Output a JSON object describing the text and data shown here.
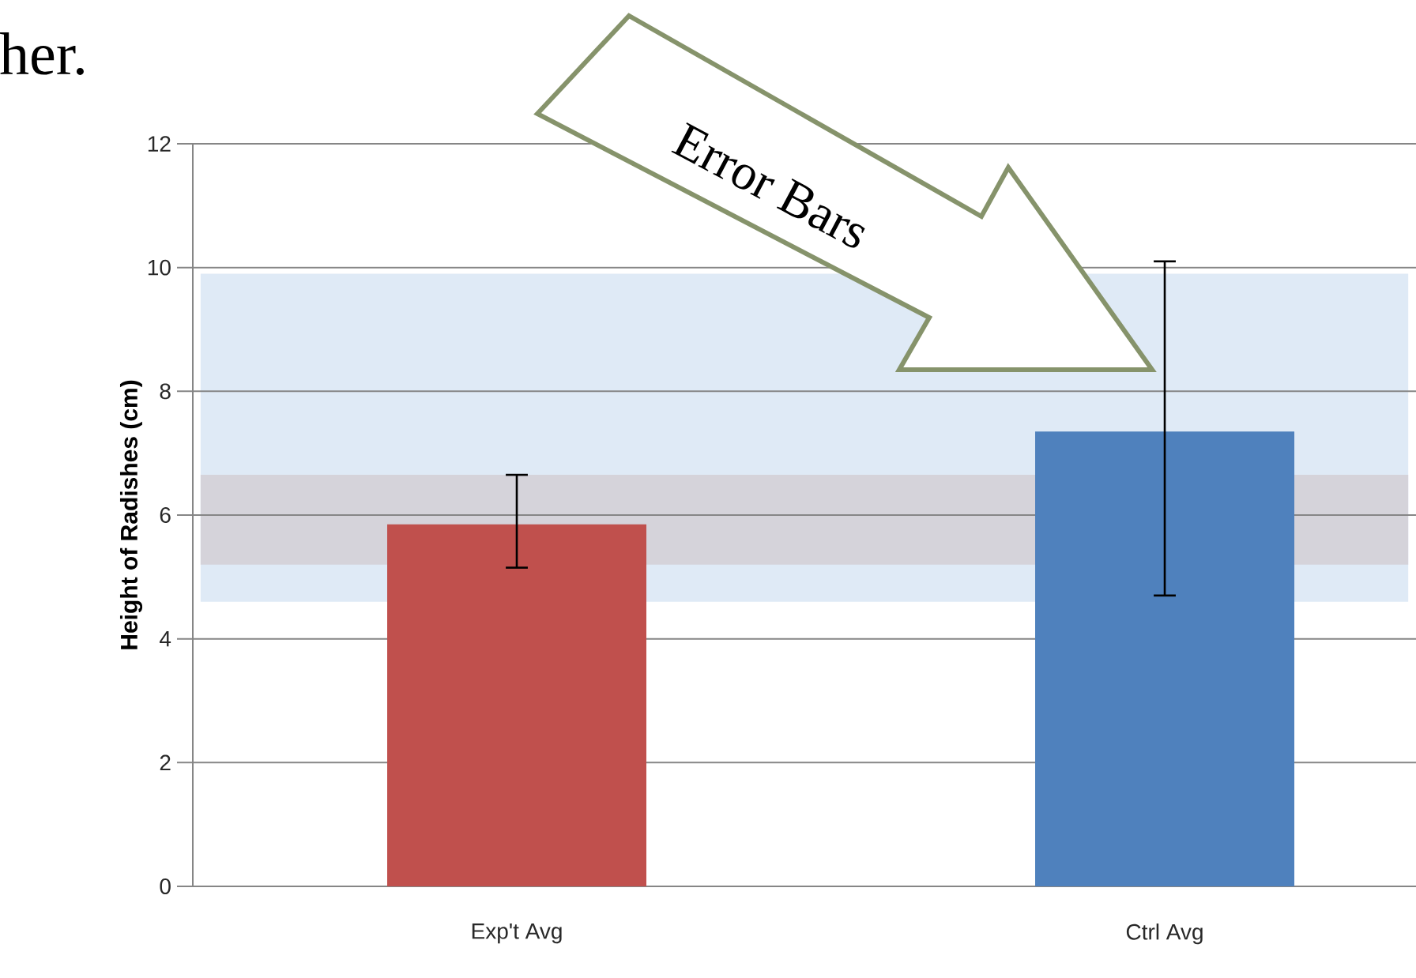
{
  "chart_data": {
    "type": "bar",
    "ylabel": "Height of Radishes (cm)",
    "categories": [
      "Exp't Avg",
      "Ctrl Avg"
    ],
    "values": [
      5.85,
      7.35
    ],
    "colors": [
      "#c0504d",
      "#4f81bd"
    ],
    "errors": [
      [
        5.15,
        6.65
      ],
      [
        4.7,
        10.1
      ]
    ],
    "ylim": [
      0,
      12
    ],
    "yticks": [
      0,
      2,
      4,
      6,
      8,
      10,
      12
    ],
    "grid": "y",
    "bands": [
      {
        "axis": "y",
        "from": 4.6,
        "to": 9.9,
        "color": "#dfeaf6"
      },
      {
        "axis": "y",
        "from": 5.2,
        "to": 6.65,
        "color": "#d5d3da"
      }
    ],
    "annotations": [
      "her.",
      "Error Bars"
    ]
  }
}
